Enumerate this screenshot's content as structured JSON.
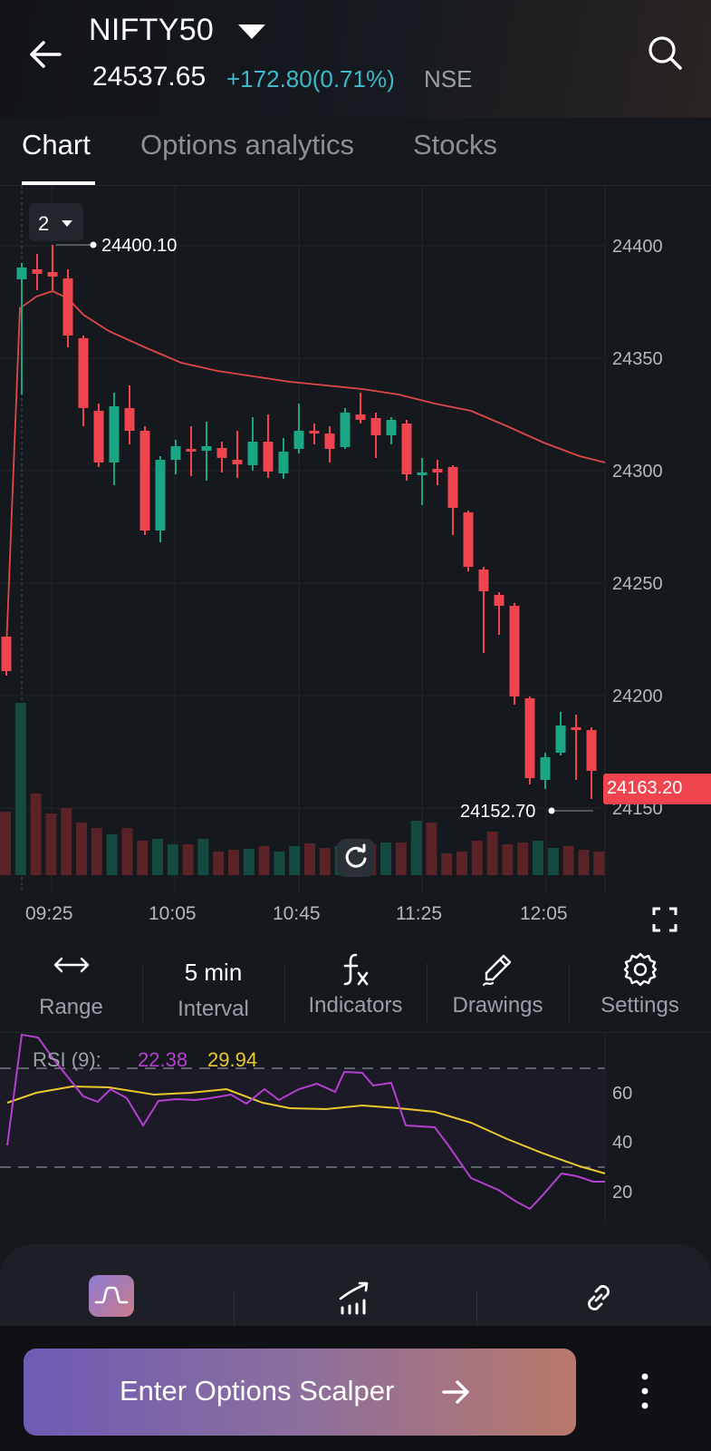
{
  "header": {
    "title": "NIFTY50",
    "price": "24537.65",
    "change": "+172.80(0.71%)",
    "exchange": "NSE"
  },
  "tabs": [
    {
      "label": "Chart",
      "active": true
    },
    {
      "label": "Options analytics",
      "active": false
    },
    {
      "label": "Stocks",
      "active": false
    }
  ],
  "chart": {
    "period_value": "2",
    "y_labels": [
      "24400",
      "24350",
      "24300",
      "24250",
      "24200",
      "24150"
    ],
    "x_labels": [
      "09:25",
      "10:05",
      "10:45",
      "11:25",
      "12:05"
    ],
    "high_marker": "24400.10",
    "low_marker": "24152.70",
    "last_price": "24163.20",
    "colors": {
      "up": "#1aa585",
      "down": "#f0444e",
      "ma_line": "#e04848"
    }
  },
  "toolbar": {
    "range_label": "Range",
    "interval_value": "5 min",
    "interval_label": "Interval",
    "indicators_label": "Indicators",
    "drawings_label": "Drawings",
    "settings_label": "Settings"
  },
  "rsi": {
    "label": "RSI (9):",
    "value1": "22.38",
    "value2": "29.94",
    "y_labels": [
      "60",
      "40",
      "20"
    ],
    "colors": {
      "rsi": "#b43fd0",
      "signal": "#e9c92e"
    }
  },
  "cta": {
    "label": "Enter Options Scalper"
  },
  "icons": [
    "back-arrow-icon",
    "search-icon",
    "refresh-icon",
    "fullscreen-icon",
    "range-arrows-icon",
    "fx-icon",
    "pencil-icon",
    "gear-icon",
    "strategy-icon",
    "chart-growth-icon",
    "link-icon",
    "arrow-right-icon",
    "more-vertical-icon"
  ]
}
